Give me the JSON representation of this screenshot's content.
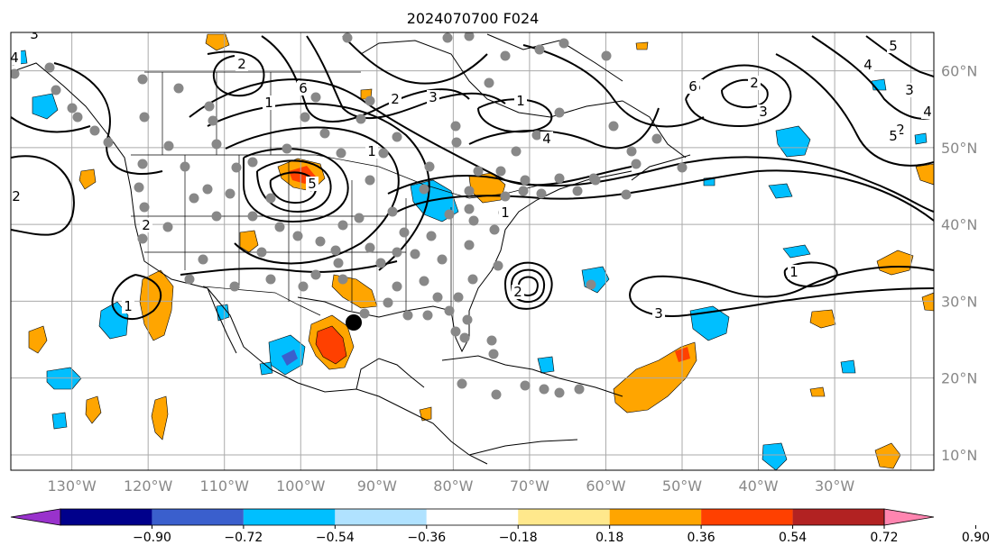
{
  "title": "2024070700 F024",
  "map": {
    "lon_range": [
      -138,
      -17
    ],
    "lat_range": [
      8,
      65
    ],
    "grid_lons": [
      -130,
      -120,
      -110,
      -100,
      -90,
      -80,
      -70,
      -60,
      -50,
      -40,
      -30,
      -20
    ],
    "grid_lats": [
      10,
      20,
      30,
      40,
      50,
      60
    ],
    "lon_tick_labels": [
      "130°W",
      "120°W",
      "110°W",
      "100°W",
      "90°W",
      "80°W",
      "70°W",
      "60°W",
      "50°W",
      "40°W",
      "30°W"
    ],
    "lat_tick_labels": [
      "10°N",
      "20°N",
      "30°N",
      "40°N",
      "50°N",
      "60°N"
    ],
    "grid_color": "#aaaaaa",
    "coast_color": "#000000"
  },
  "colorbar": {
    "tick_labels": [
      "−0.90",
      "−0.72",
      "−0.54",
      "−0.36",
      "−0.18",
      "0.18",
      "0.36",
      "0.54",
      "0.72",
      "0.90"
    ],
    "colors": [
      "#9932cc",
      "#00008b",
      "#3a5fcd",
      "#00bfff",
      "#b0e2ff",
      "#ffffff",
      "#ffe88c",
      "#ffa500",
      "#ff4000",
      "#b22222",
      "#ff85b0"
    ]
  },
  "contour_labels": [
    "4",
    "3",
    "2",
    "1",
    "6",
    "5",
    "1",
    "6",
    "4",
    "5",
    "3",
    "2",
    "4",
    "1",
    "2",
    "3",
    "6",
    "5",
    "4",
    "3",
    "2",
    "1",
    "2",
    "1",
    "3",
    "2",
    "2",
    "1"
  ],
  "stations_color": "#888888",
  "marker_color": "#000000"
}
